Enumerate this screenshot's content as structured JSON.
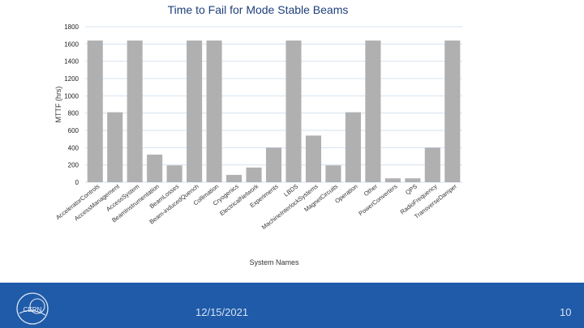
{
  "chart_data": {
    "type": "bar",
    "title": "Time to Fail for Mode Stable Beams",
    "xlabel": "System Names",
    "ylabel": "MTTF (hrs)",
    "ylim": [
      0,
      1800
    ],
    "yticks": [
      0,
      200,
      400,
      600,
      800,
      1000,
      1200,
      1400,
      1600,
      1800
    ],
    "grid": true,
    "bar_color": "#b0b0b0",
    "categories": [
      "AcceleratorControls",
      "AccessManagement",
      "AccessSystem",
      "BeamInstrumentation",
      "BeamLosses",
      "Beam-inducedQuench",
      "Collimation",
      "Cryogenics",
      "ElectricalNetwork",
      "Experiments",
      "LBDS",
      "MachineInterlockSystems",
      "MagnetCircuits",
      "Operation",
      "Other",
      "PowerConverters",
      "QPS",
      "RadioFrequency",
      "TransverseDamper"
    ],
    "values": [
      1640,
      810,
      1640,
      320,
      195,
      1640,
      1640,
      85,
      170,
      400,
      1640,
      540,
      195,
      810,
      1640,
      45,
      45,
      400,
      1640
    ]
  },
  "footer": {
    "date": "12/15/2021",
    "page": "10",
    "logo_text": "CERN"
  },
  "colors": {
    "footer_bg": "#1f5ba8",
    "title": "#1f3f7a",
    "grid": "#d6e3f0"
  }
}
